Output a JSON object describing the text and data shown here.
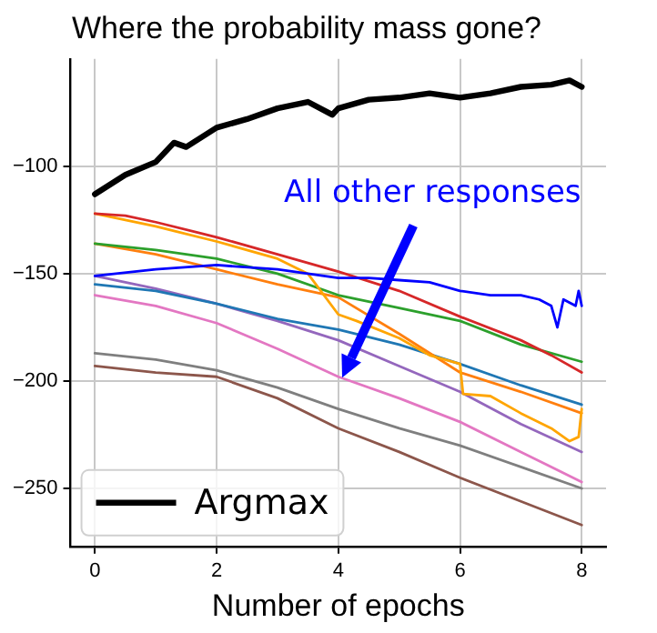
{
  "chart_data": {
    "type": "line",
    "title": "Where the probability mass gone?",
    "xlabel": "Number of epochs",
    "xlim": [
      -0.4,
      8.4
    ],
    "ylim": [
      -277,
      -50
    ],
    "xticks": [
      0,
      2,
      4,
      6,
      8
    ],
    "yticks": [
      {
        "value": -100,
        "label": "−100"
      },
      {
        "value": -150,
        "label": "−150"
      },
      {
        "value": -200,
        "label": "−200"
      },
      {
        "value": -250,
        "label": "−250"
      }
    ],
    "grid": true,
    "legend": "bottom left",
    "marker": "none",
    "line_style": "solid",
    "annotations": [
      "All other responses"
    ],
    "series": [
      {
        "name": "Argmax",
        "color": "#000000",
        "x": [
          0,
          0.5,
          1,
          1.3,
          1.5,
          2,
          2.5,
          3,
          3.5,
          3.9,
          4,
          4.5,
          5,
          5.5,
          6,
          6.5,
          7,
          7.5,
          7.8,
          8
        ],
        "values": [
          -113,
          -104,
          -98,
          -89,
          -91,
          -82,
          -78,
          -73,
          -70,
          -76,
          -73,
          -69,
          -68,
          -66,
          -68,
          -66,
          -63,
          -62,
          -60,
          -63
        ]
      },
      {
        "color": "#0000ff",
        "x": [
          0,
          1,
          2,
          3,
          3.5,
          4,
          4.5,
          5,
          5.5,
          6,
          6.5,
          7,
          7.3,
          7.5,
          7.6,
          7.7,
          7.9,
          7.95,
          8
        ],
        "values": [
          -151,
          -148,
          -146,
          -148,
          -150,
          -152,
          -152,
          -153,
          -154,
          -158,
          -160,
          -160,
          -162,
          -165,
          -175,
          -162,
          -165,
          -158,
          -165
        ]
      },
      {
        "color": "#d62728",
        "x": [
          0,
          0.5,
          1,
          2,
          3,
          4,
          5,
          6,
          7,
          7.5,
          8
        ],
        "values": [
          -122,
          -123,
          -126,
          -133,
          -141,
          -149,
          -158,
          -170,
          -181,
          -188,
          -196
        ]
      },
      {
        "color": "#ffa500",
        "x": [
          0,
          1,
          2,
          3,
          3.5,
          4,
          4.3,
          5,
          5.5,
          6,
          6.05,
          6.5,
          7,
          7.5,
          7.8,
          7.95,
          8
        ],
        "values": [
          -122,
          -128,
          -135,
          -143,
          -150,
          -169,
          -172,
          -180,
          -188,
          -192,
          -206,
          -207,
          -215,
          -222,
          -228,
          -226,
          -213
        ]
      },
      {
        "color": "#2ca02c",
        "x": [
          0,
          1,
          2,
          3,
          4,
          5,
          6,
          7,
          8
        ],
        "values": [
          -136,
          -139,
          -143,
          -150,
          -160,
          -166,
          -172,
          -183,
          -191
        ]
      },
      {
        "color": "#ff7f0e",
        "x": [
          0,
          1,
          2,
          3,
          4,
          5,
          6,
          7,
          8
        ],
        "values": [
          -136,
          -141,
          -148,
          -155,
          -161,
          -178,
          -196,
          -205,
          -215
        ]
      },
      {
        "color": "#1f77b4",
        "x": [
          0,
          1,
          2,
          3,
          4,
          5,
          6,
          7,
          8
        ],
        "values": [
          -155,
          -158,
          -164,
          -171,
          -176,
          -183,
          -192,
          -202,
          -211
        ]
      },
      {
        "color": "#9467bd",
        "x": [
          0,
          1,
          2,
          3,
          4,
          5,
          6,
          7,
          8
        ],
        "values": [
          -151,
          -157,
          -164,
          -172,
          -181,
          -193,
          -205,
          -220,
          -233
        ]
      },
      {
        "color": "#e377c2",
        "x": [
          0,
          1,
          2,
          3,
          4,
          5,
          6,
          7,
          8
        ],
        "values": [
          -160,
          -165,
          -173,
          -185,
          -198,
          -208,
          -219,
          -233,
          -247
        ]
      },
      {
        "color": "#7f7f7f",
        "x": [
          0,
          1,
          2,
          3,
          4,
          5,
          6,
          7,
          8
        ],
        "values": [
          -187,
          -190,
          -195,
          -203,
          -213,
          -222,
          -230,
          -240,
          -250
        ]
      },
      {
        "color": "#8c564b",
        "x": [
          0,
          1,
          2,
          3,
          4,
          5,
          6,
          7,
          8
        ],
        "values": [
          -193,
          -196,
          -198,
          -208,
          -222,
          -233,
          -245,
          -256,
          -267
        ]
      }
    ]
  }
}
